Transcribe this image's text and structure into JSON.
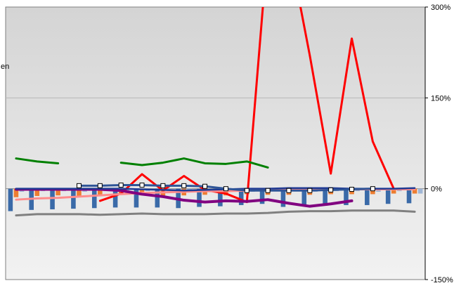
{
  "chart_data": {
    "type": "bar",
    "title": "",
    "xlabel": "",
    "ylabel": "",
    "y_axis_side": "right",
    "ylim": [
      -150,
      300
    ],
    "y_ticks": [
      -150,
      0,
      150,
      300
    ],
    "y_tick_labels": [
      "-150%",
      "0%",
      "150%",
      "300%"
    ],
    "grid": true,
    "legend": "none",
    "truncated_label_fragment": "en",
    "n_categories": 20,
    "bar_series": [
      {
        "color": "#3a6aa8",
        "values": [
          -37,
          -35,
          -34,
          -33,
          -32,
          -31,
          -31,
          -31,
          -32,
          -30,
          -29,
          -27,
          -25,
          -30,
          -29,
          -28,
          -27,
          -27,
          -25,
          -24
        ]
      },
      {
        "color": "#ed7d31",
        "values": [
          -14,
          -12,
          -11,
          -12,
          -11,
          -10,
          -11,
          -12,
          -11,
          -10,
          -11,
          -9,
          -10,
          -10,
          -10,
          -9,
          -9,
          -9,
          -8,
          -8
        ]
      },
      {
        "color": "#9fb6d6",
        "values": [
          -5,
          -4,
          -4,
          -5,
          -4,
          -5,
          -4,
          -4,
          -5,
          -4,
          -4,
          -5,
          -4,
          -4,
          -5,
          -4,
          -4,
          -5,
          -4,
          -8
        ]
      }
    ],
    "line_series": [
      {
        "color": "#ff0000",
        "width": 3,
        "values": [
          null,
          null,
          null,
          null,
          -20,
          -8,
          24,
          -3,
          21,
          -2,
          -8,
          -22,
          400,
          400,
          220,
          25,
          248,
          78,
          0,
          null
        ]
      },
      {
        "color": "#008000",
        "width": 3,
        "values": [
          50,
          45,
          42,
          null,
          null,
          43,
          39,
          43,
          50,
          42,
          41,
          45,
          35,
          null,
          null,
          null,
          null,
          null,
          null,
          null
        ]
      },
      {
        "color": "#808080",
        "width": 3,
        "values": [
          -44,
          -42,
          -42,
          -42,
          -43,
          -42,
          -41,
          -42,
          -42,
          -42,
          -41,
          -41,
          -40,
          -38,
          -37,
          -37,
          -36,
          -36,
          -36,
          -38
        ]
      },
      {
        "color": "#ff8c8c",
        "width": 3,
        "values": [
          -18,
          -16,
          -15,
          -13,
          -11,
          -9,
          -7,
          -6,
          -5,
          -4,
          -4,
          -3,
          -2,
          -2,
          -1,
          -1,
          -1,
          -1,
          -1,
          -1
        ]
      },
      {
        "color": "#800080",
        "width": 4,
        "values": [
          -1,
          -1,
          -1,
          -1,
          -1,
          -3,
          -9,
          -13,
          -19,
          -22,
          -20,
          -21,
          -18,
          -24,
          -29,
          -25,
          -20,
          null,
          null,
          null
        ]
      },
      {
        "color": "#1f3a93",
        "width": 2.5,
        "values": [
          0,
          0,
          0,
          0,
          0,
          0,
          -1,
          -2,
          -3,
          -2,
          -1,
          0,
          0,
          1,
          1,
          1,
          0,
          0,
          0,
          1
        ]
      },
      {
        "color": "#2f5597",
        "width": 3,
        "marker": "square",
        "values": [
          null,
          null,
          null,
          5,
          5,
          6,
          6,
          5,
          5,
          4,
          0,
          -3,
          -3,
          -3,
          -3,
          -2,
          -1,
          0,
          null,
          null
        ]
      }
    ]
  }
}
